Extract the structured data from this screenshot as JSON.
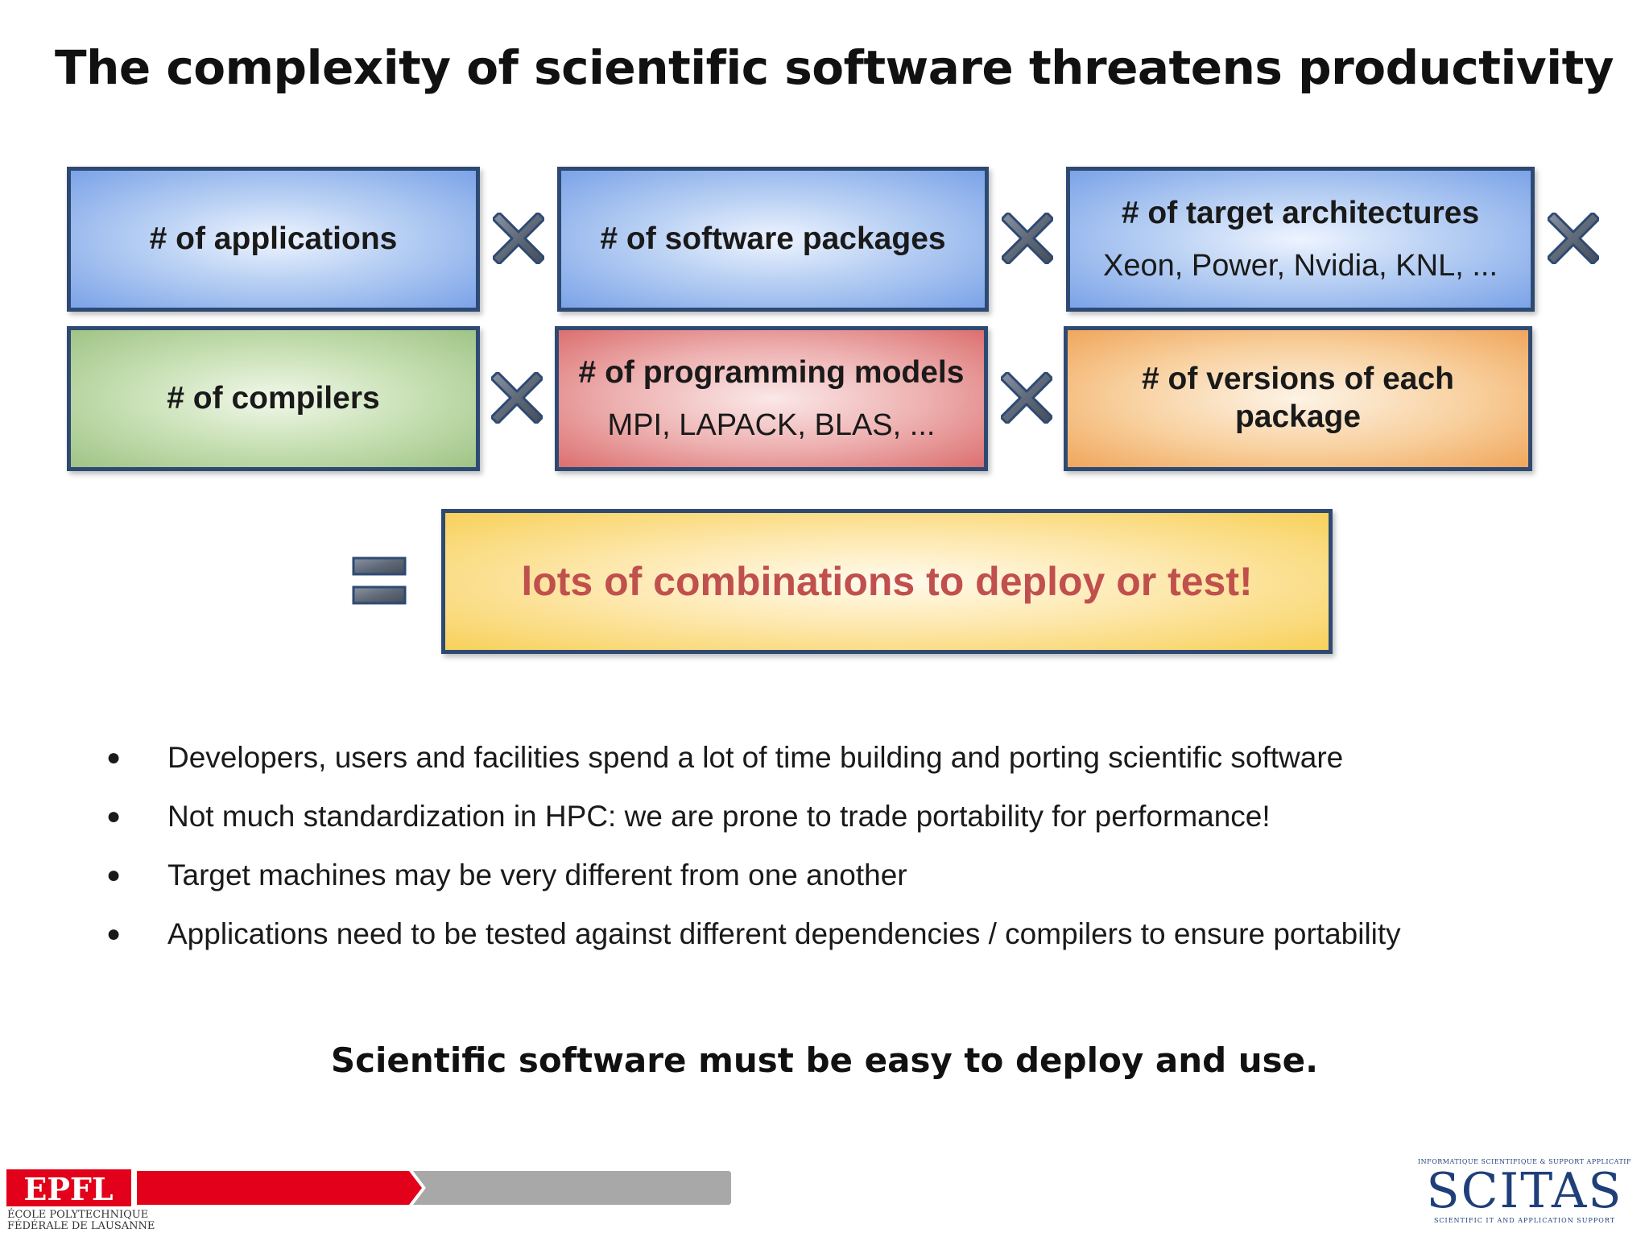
{
  "title": "The complexity of scientific software threatens productivity",
  "factors": [
    {
      "title": "# of applications",
      "subtitle": ""
    },
    {
      "title": "# of software packages",
      "subtitle": ""
    },
    {
      "title": "# of target architectures",
      "subtitle": "Xeon, Power, Nvidia, KNL, ..."
    },
    {
      "title": "# of compilers",
      "subtitle": ""
    },
    {
      "title": "# of programming models",
      "subtitle": "MPI, LAPACK, BLAS, ..."
    },
    {
      "title": "# of versions of each package",
      "subtitle": ""
    }
  ],
  "operators": {
    "multiply": "times-icon",
    "equals": "equals-icon"
  },
  "result": "lots of combinations to deploy or test!",
  "bullets": [
    "Developers, users and facilities spend a lot of time building and porting scientific software",
    "Not much standardization in HPC: we are prone to trade portability for performance!",
    "Target machines may be very different from one another",
    "Applications need to be tested against different dependencies / compilers to ensure portability"
  ],
  "bullet_symbol": "●",
  "conclusion": "Scientific software must be easy to deploy and use.",
  "footer": {
    "epfl_logo": "EPFL",
    "epfl_line1": "ÉCOLE POLYTECHNIQUE",
    "epfl_line2": "FÉDÉRALE DE LAUSANNE",
    "scitas_top": "INFORMATIQUE SCIENTIFIQUE & SUPPORT APPLICATIF",
    "scitas_logo": "SCITAS",
    "scitas_bottom": "SCIENTIFIC IT AND APPLICATION SUPPORT"
  },
  "colors": {
    "border": "#2e4a73",
    "result_text": "#c0504d",
    "epfl_red": "#e2001a",
    "scitas_blue": "#1f3f7a"
  }
}
